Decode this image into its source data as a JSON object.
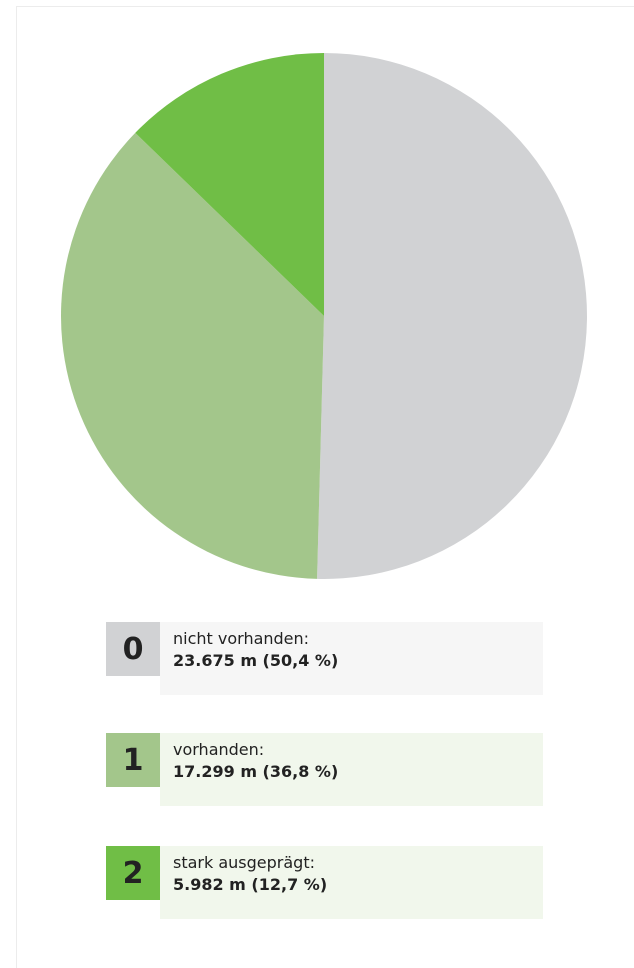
{
  "chart_data": {
    "type": "pie",
    "codes": [
      "0",
      "1",
      "2"
    ],
    "categories": [
      "nicht vorhanden:",
      "vorhanden:",
      "stark ausgeprägt:"
    ],
    "values": [
      23675,
      17299,
      5982
    ],
    "value_labels": [
      "23.675 m (50,4 %)",
      "17.299 m (36,8 %)",
      "5.982 m (12,7 %)"
    ],
    "colors": [
      "#d1d2d4",
      "#a3c68b",
      "#70be46"
    ],
    "legend_backgrounds": [
      "#f6f6f6",
      "#f1f7ec",
      "#f1f7ec"
    ]
  }
}
